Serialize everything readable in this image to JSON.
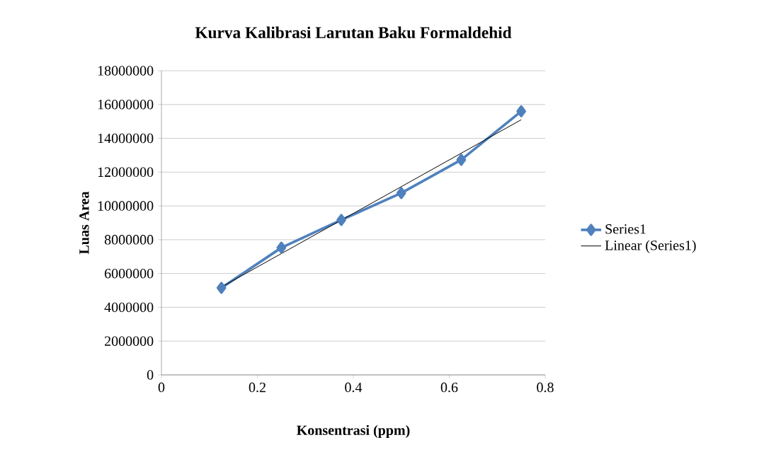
{
  "chart_data": {
    "type": "line",
    "title": "Kurva Kalibrasi Larutan Baku Formaldehid",
    "xlabel": "Konsentrasi (ppm)",
    "ylabel": "Luas Area",
    "x": [
      0.125,
      0.25,
      0.375,
      0.5,
      0.625,
      0.75
    ],
    "series": [
      {
        "name": "Series1",
        "color": "#4f81bd",
        "marker": "diamond",
        "values": [
          5150000,
          7530000,
          9170000,
          10760000,
          12730000,
          15600000
        ]
      },
      {
        "name": "Linear (Series1)",
        "type": "line",
        "color": "#000000",
        "marker": "none",
        "x": [
          0.125,
          0.75
        ],
        "values": [
          5200000,
          15100000
        ]
      }
    ],
    "xlim": [
      0,
      0.8
    ],
    "xticks": [
      0,
      0.2,
      0.4,
      0.6,
      0.8
    ],
    "ylim": [
      0,
      18000000
    ],
    "yticks": [
      0,
      2000000,
      4000000,
      6000000,
      8000000,
      10000000,
      12000000,
      14000000,
      16000000,
      18000000
    ],
    "grid": "y",
    "legend": "right"
  }
}
